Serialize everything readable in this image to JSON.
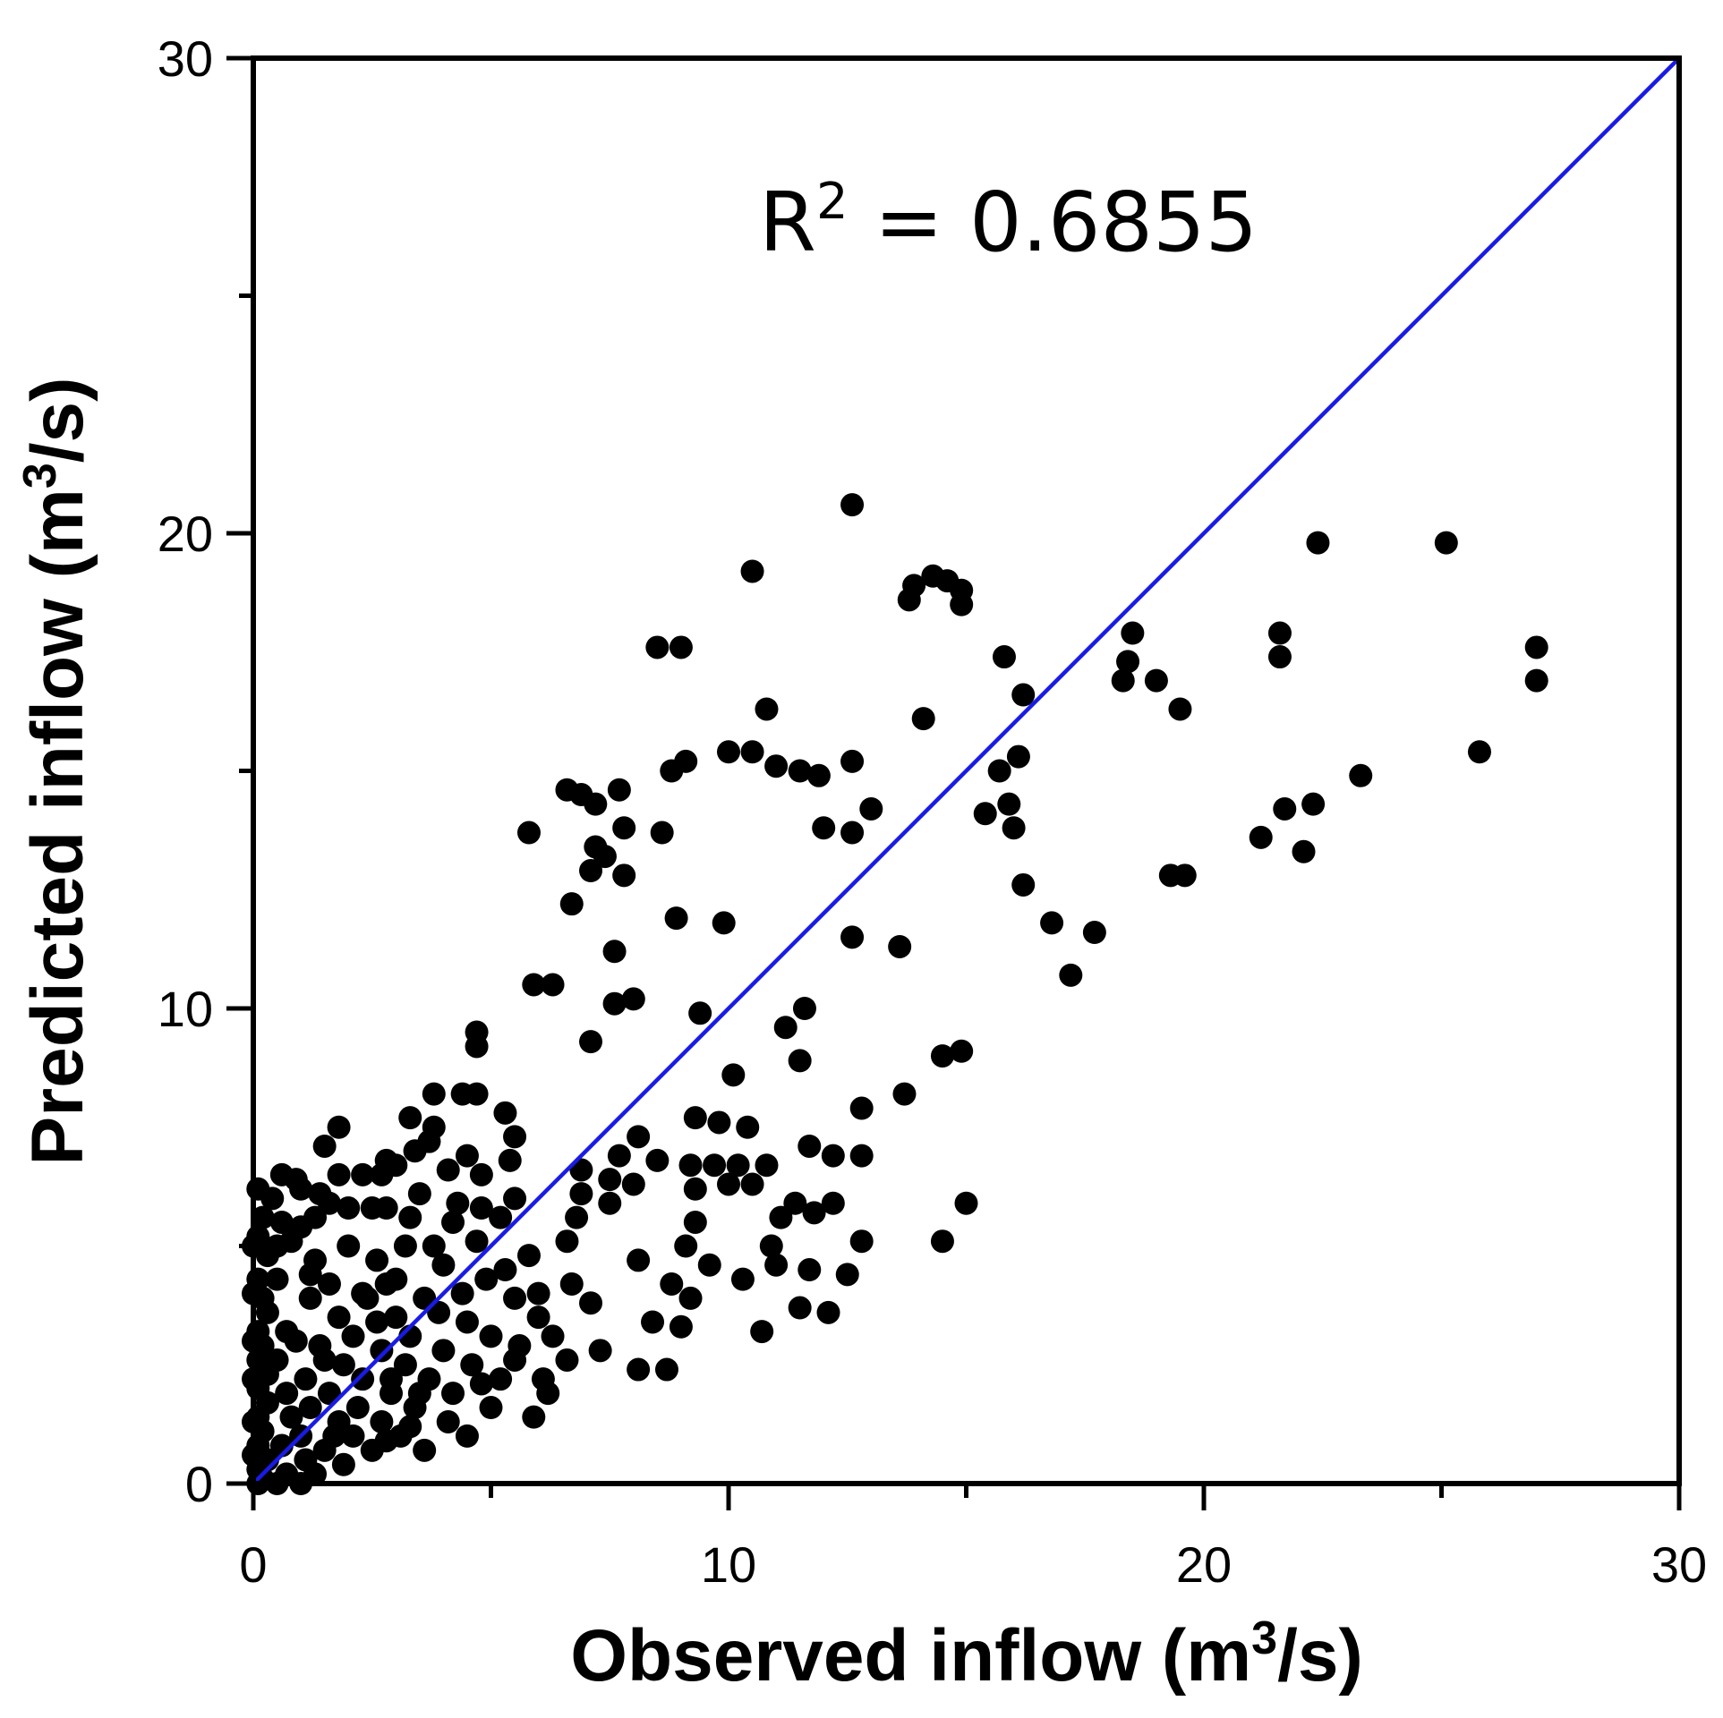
{
  "chart_data": {
    "type": "scatter",
    "title": "",
    "xlabel": {
      "prefix": "Observed inflow (m",
      "sup": "3",
      "suffix": "/s)"
    },
    "ylabel": {
      "prefix": "Predicted inflow (m",
      "sup": "3",
      "suffix": "/s)"
    },
    "xlim": [
      0,
      30
    ],
    "ylim": [
      0,
      30
    ],
    "xticks": [
      0,
      10,
      20,
      30
    ],
    "yticks": [
      0,
      10,
      20,
      30
    ],
    "minor_ticks": [
      5,
      15,
      25
    ],
    "grid": false,
    "annotation": {
      "prefix": "R",
      "sup": "2",
      "suffix": " = 0.6855"
    },
    "reference_line": {
      "name": "1:1 line",
      "x": [
        0,
        30
      ],
      "y": [
        0,
        30
      ],
      "color": "#1a1ae6"
    },
    "marker_color": "#000000",
    "series": [
      {
        "name": "observations",
        "points": [
          [
            12.6,
            20.6
          ],
          [
            10.5,
            19.2
          ],
          [
            13.9,
            18.9
          ],
          [
            14.3,
            19.1
          ],
          [
            14.6,
            19.0
          ],
          [
            14.9,
            18.8
          ],
          [
            13.8,
            18.6
          ],
          [
            14.9,
            18.5
          ],
          [
            22.4,
            19.8
          ],
          [
            25.1,
            19.8
          ],
          [
            18.5,
            17.9
          ],
          [
            21.6,
            17.9
          ],
          [
            8.5,
            17.6
          ],
          [
            9.0,
            17.6
          ],
          [
            15.8,
            17.4
          ],
          [
            18.4,
            17.3
          ],
          [
            21.6,
            17.4
          ],
          [
            27.0,
            17.6
          ],
          [
            18.3,
            16.9
          ],
          [
            19.0,
            16.9
          ],
          [
            27.0,
            16.9
          ],
          [
            16.2,
            16.6
          ],
          [
            10.8,
            16.3
          ],
          [
            14.1,
            16.1
          ],
          [
            19.5,
            16.3
          ],
          [
            10.0,
            15.4
          ],
          [
            10.5,
            15.4
          ],
          [
            25.8,
            15.4
          ],
          [
            9.1,
            15.2
          ],
          [
            8.8,
            15.0
          ],
          [
            11.0,
            15.1
          ],
          [
            11.5,
            15.0
          ],
          [
            11.9,
            14.9
          ],
          [
            12.6,
            15.2
          ],
          [
            15.7,
            15.0
          ],
          [
            16.1,
            15.3
          ],
          [
            23.3,
            14.9
          ],
          [
            6.6,
            14.6
          ],
          [
            6.9,
            14.5
          ],
          [
            7.7,
            14.6
          ],
          [
            7.2,
            14.3
          ],
          [
            13.0,
            14.2
          ],
          [
            15.9,
            14.3
          ],
          [
            15.4,
            14.1
          ],
          [
            21.7,
            14.2
          ],
          [
            22.3,
            14.3
          ],
          [
            5.8,
            13.7
          ],
          [
            8.6,
            13.7
          ],
          [
            7.8,
            13.8
          ],
          [
            12.0,
            13.8
          ],
          [
            12.6,
            13.7
          ],
          [
            16.0,
            13.8
          ],
          [
            21.2,
            13.6
          ],
          [
            7.2,
            13.4
          ],
          [
            7.4,
            13.2
          ],
          [
            22.1,
            13.3
          ],
          [
            7.1,
            12.9
          ],
          [
            7.8,
            12.8
          ],
          [
            19.3,
            12.8
          ],
          [
            19.6,
            12.8
          ],
          [
            16.2,
            12.6
          ],
          [
            6.7,
            12.2
          ],
          [
            8.9,
            11.9
          ],
          [
            9.9,
            11.8
          ],
          [
            16.8,
            11.8
          ],
          [
            17.7,
            11.6
          ],
          [
            12.6,
            11.5
          ],
          [
            13.6,
            11.3
          ],
          [
            7.6,
            11.2
          ],
          [
            5.9,
            10.5
          ],
          [
            6.3,
            10.5
          ],
          [
            17.2,
            10.7
          ],
          [
            7.6,
            10.1
          ],
          [
            8.0,
            10.2
          ],
          [
            9.4,
            9.9
          ],
          [
            11.6,
            10.0
          ],
          [
            11.2,
            9.6
          ],
          [
            4.7,
            9.5
          ],
          [
            4.7,
            9.2
          ],
          [
            7.1,
            9.3
          ],
          [
            14.5,
            9.0
          ],
          [
            14.9,
            9.1
          ],
          [
            11.5,
            8.9
          ],
          [
            10.1,
            8.6
          ],
          [
            4.4,
            8.2
          ],
          [
            4.7,
            8.2
          ],
          [
            3.8,
            8.2
          ],
          [
            13.7,
            8.2
          ],
          [
            12.8,
            7.9
          ],
          [
            5.3,
            7.8
          ],
          [
            3.3,
            7.7
          ],
          [
            9.3,
            7.7
          ],
          [
            9.8,
            7.6
          ],
          [
            10.4,
            7.5
          ],
          [
            1.8,
            7.5
          ],
          [
            3.8,
            7.5
          ],
          [
            5.5,
            7.3
          ],
          [
            8.1,
            7.3
          ],
          [
            3.7,
            7.2
          ],
          [
            11.7,
            7.1
          ],
          [
            1.5,
            7.1
          ],
          [
            3.4,
            7.0
          ],
          [
            4.5,
            6.9
          ],
          [
            2.8,
            6.8
          ],
          [
            5.4,
            6.8
          ],
          [
            12.2,
            6.9
          ],
          [
            12.8,
            6.9
          ],
          [
            3.0,
            6.7
          ],
          [
            7.7,
            6.9
          ],
          [
            8.5,
            6.8
          ],
          [
            9.2,
            6.7
          ],
          [
            9.7,
            6.7
          ],
          [
            10.2,
            6.7
          ],
          [
            10.8,
            6.7
          ],
          [
            4.1,
            6.6
          ],
          [
            6.9,
            6.6
          ],
          [
            4.8,
            6.5
          ],
          [
            1.8,
            6.5
          ],
          [
            2.7,
            6.5
          ],
          [
            0.6,
            6.5
          ],
          [
            0.9,
            6.4
          ],
          [
            2.3,
            6.5
          ],
          [
            7.5,
            6.4
          ],
          [
            8.0,
            6.3
          ],
          [
            10.0,
            6.3
          ],
          [
            10.5,
            6.3
          ],
          [
            9.3,
            6.2
          ],
          [
            0.1,
            6.2
          ],
          [
            0.4,
            6.0
          ],
          [
            1.0,
            6.2
          ],
          [
            1.4,
            6.1
          ],
          [
            3.5,
            6.1
          ],
          [
            6.9,
            6.1
          ],
          [
            5.5,
            6.0
          ],
          [
            1.6,
            5.9
          ],
          [
            2.0,
            5.8
          ],
          [
            2.5,
            5.8
          ],
          [
            2.8,
            5.8
          ],
          [
            4.3,
            5.9
          ],
          [
            4.8,
            5.8
          ],
          [
            7.5,
            5.9
          ],
          [
            11.4,
            5.9
          ],
          [
            12.2,
            5.9
          ],
          [
            0.2,
            5.6
          ],
          [
            0.6,
            5.5
          ],
          [
            1.3,
            5.6
          ],
          [
            3.3,
            5.6
          ],
          [
            5.2,
            5.6
          ],
          [
            6.8,
            5.6
          ],
          [
            9.3,
            5.5
          ],
          [
            11.1,
            5.6
          ],
          [
            11.8,
            5.7
          ],
          [
            0.1,
            5.2
          ],
          [
            0.8,
            5.1
          ],
          [
            2.0,
            5.0
          ],
          [
            3.2,
            5.0
          ],
          [
            4.7,
            5.1
          ],
          [
            6.6,
            5.1
          ],
          [
            9.1,
            5.0
          ],
          [
            10.9,
            5.0
          ],
          [
            12.8,
            5.1
          ],
          [
            14.5,
            5.1
          ],
          [
            15.0,
            5.9
          ],
          [
            0.3,
            4.8
          ],
          [
            1.3,
            4.7
          ],
          [
            2.6,
            4.7
          ],
          [
            4.0,
            4.6
          ],
          [
            5.8,
            4.8
          ],
          [
            8.1,
            4.7
          ],
          [
            9.6,
            4.6
          ],
          [
            11.0,
            4.6
          ],
          [
            11.7,
            4.5
          ],
          [
            0.1,
            4.3
          ],
          [
            0.5,
            4.3
          ],
          [
            1.6,
            4.2
          ],
          [
            2.8,
            4.2
          ],
          [
            4.9,
            4.3
          ],
          [
            6.7,
            4.2
          ],
          [
            8.8,
            4.2
          ],
          [
            10.3,
            4.3
          ],
          [
            12.5,
            4.4
          ],
          [
            0.2,
            3.9
          ],
          [
            1.2,
            3.9
          ],
          [
            2.4,
            3.9
          ],
          [
            3.6,
            3.9
          ],
          [
            5.5,
            3.9
          ],
          [
            7.1,
            3.8
          ],
          [
            9.2,
            3.9
          ],
          [
            11.5,
            3.7
          ],
          [
            12.1,
            3.6
          ],
          [
            0.3,
            3.6
          ],
          [
            1.8,
            3.5
          ],
          [
            3.0,
            3.5
          ],
          [
            4.5,
            3.4
          ],
          [
            6.0,
            3.5
          ],
          [
            8.4,
            3.4
          ],
          [
            9.0,
            3.3
          ],
          [
            0.1,
            3.2
          ],
          [
            0.7,
            3.2
          ],
          [
            2.1,
            3.1
          ],
          [
            3.3,
            3.1
          ],
          [
            5.0,
            3.1
          ],
          [
            6.3,
            3.1
          ],
          [
            10.7,
            3.2
          ],
          [
            0.2,
            2.9
          ],
          [
            1.4,
            2.9
          ],
          [
            2.7,
            2.8
          ],
          [
            4.0,
            2.8
          ],
          [
            5.6,
            2.9
          ],
          [
            7.3,
            2.8
          ],
          [
            0.1,
            2.6
          ],
          [
            0.5,
            2.6
          ],
          [
            1.9,
            2.5
          ],
          [
            3.2,
            2.5
          ],
          [
            4.6,
            2.5
          ],
          [
            6.6,
            2.6
          ],
          [
            8.1,
            2.4
          ],
          [
            8.7,
            2.4
          ],
          [
            0.3,
            2.3
          ],
          [
            1.1,
            2.2
          ],
          [
            2.3,
            2.2
          ],
          [
            3.7,
            2.2
          ],
          [
            5.2,
            2.2
          ],
          [
            0.1,
            2.0
          ],
          [
            0.7,
            1.9
          ],
          [
            1.6,
            1.9
          ],
          [
            2.9,
            1.9
          ],
          [
            4.2,
            1.9
          ],
          [
            6.2,
            1.9
          ],
          [
            0.3,
            1.7
          ],
          [
            1.2,
            1.6
          ],
          [
            2.2,
            1.6
          ],
          [
            3.4,
            1.6
          ],
          [
            5.0,
            1.6
          ],
          [
            0.1,
            1.4
          ],
          [
            0.8,
            1.4
          ],
          [
            1.8,
            1.3
          ],
          [
            2.7,
            1.3
          ],
          [
            4.1,
            1.3
          ],
          [
            5.9,
            1.4
          ],
          [
            0.2,
            1.1
          ],
          [
            1.0,
            1.0
          ],
          [
            2.1,
            1.0
          ],
          [
            3.1,
            1.0
          ],
          [
            4.5,
            1.0
          ],
          [
            0.1,
            0.8
          ],
          [
            0.6,
            0.8
          ],
          [
            1.5,
            0.7
          ],
          [
            2.5,
            0.7
          ],
          [
            3.6,
            0.7
          ],
          [
            0.3,
            0.5
          ],
          [
            1.1,
            0.5
          ],
          [
            1.9,
            0.4
          ],
          [
            0.1,
            0.3
          ],
          [
            0.7,
            0.2
          ],
          [
            1.3,
            0.2
          ],
          [
            0.2,
            0.1
          ],
          [
            0.5,
            0.0
          ],
          [
            1.0,
            0.0
          ],
          [
            0.1,
            0.0
          ],
          [
            0.0,
            0.6
          ],
          [
            0.0,
            1.3
          ],
          [
            0.0,
            2.2
          ],
          [
            0.0,
            3.0
          ],
          [
            0.0,
            4.0
          ],
          [
            0.0,
            5.0
          ],
          [
            0.9,
            3.0
          ],
          [
            1.5,
            2.6
          ],
          [
            2.6,
            3.4
          ],
          [
            3.9,
            3.6
          ],
          [
            4.4,
            4.0
          ],
          [
            5.3,
            4.5
          ],
          [
            6.0,
            4.0
          ],
          [
            1.2,
            4.4
          ],
          [
            2.3,
            4.0
          ],
          [
            3.0,
            4.3
          ],
          [
            3.8,
            5.0
          ],
          [
            4.2,
            5.5
          ],
          [
            0.5,
            5.0
          ],
          [
            1.0,
            5.4
          ],
          [
            2.9,
            2.2
          ],
          [
            3.5,
            1.9
          ],
          [
            4.8,
            2.1
          ],
          [
            5.5,
            2.6
          ],
          [
            6.1,
            2.2
          ],
          [
            1.7,
            1.0
          ],
          [
            2.8,
            0.9
          ],
          [
            3.3,
            1.2
          ]
        ]
      }
    ]
  }
}
